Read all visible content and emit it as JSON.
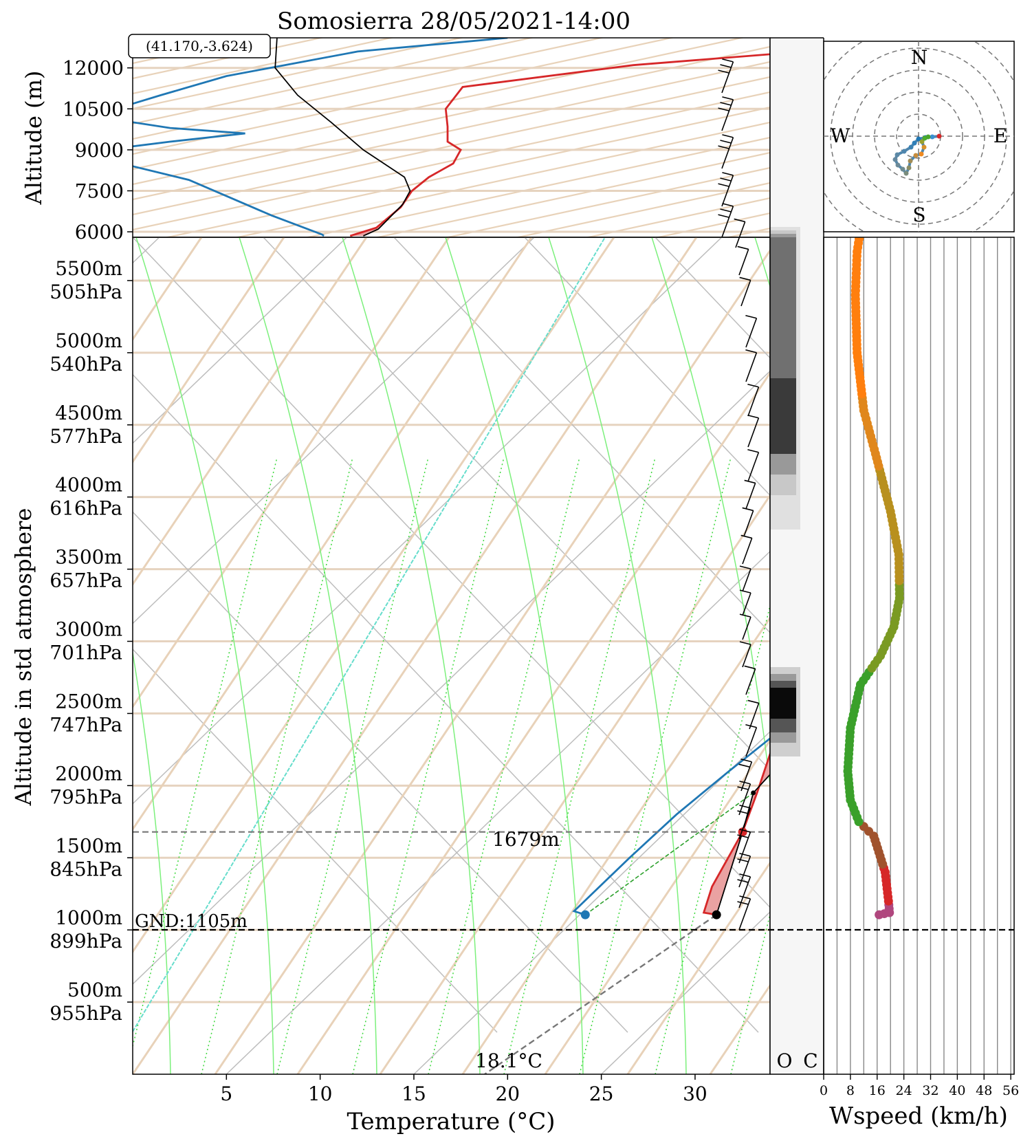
{
  "title": "Somosierra 28/05/2021-14:00",
  "coords_label": "(41.170,-3.624)",
  "upper_panel": {
    "ylabel": "Altitude (m)",
    "ticks": [
      "12000",
      "10500",
      "9000",
      "7500",
      "6000"
    ],
    "tick_values": [
      12000,
      10500,
      9000,
      7500,
      6000
    ]
  },
  "main_panel": {
    "ylabel": "Altitude in std atmosphere",
    "xlabel": "Temperature (°C)",
    "x_ticks": [
      "5",
      "10",
      "15",
      "20",
      "25",
      "30"
    ],
    "x_tick_values": [
      5,
      10,
      15,
      20,
      25,
      30
    ],
    "y_ticks": [
      {
        "alt": "5500m",
        "pres": "505hPa",
        "value": 5500
      },
      {
        "alt": "5000m",
        "pres": "540hPa",
        "value": 5000
      },
      {
        "alt": "4500m",
        "pres": "577hPa",
        "value": 4500
      },
      {
        "alt": "4000m",
        "pres": "616hPa",
        "value": 4000
      },
      {
        "alt": "3500m",
        "pres": "657hPa",
        "value": 3500
      },
      {
        "alt": "3000m",
        "pres": "701hPa",
        "value": 3000
      },
      {
        "alt": "2500m",
        "pres": "747hPa",
        "value": 2500
      },
      {
        "alt": "2000m",
        "pres": "795hPa",
        "value": 2000
      },
      {
        "alt": "1500m",
        "pres": "845hPa",
        "value": 1500
      },
      {
        "alt": "1000m",
        "pres": "899hPa",
        "value": 1000
      },
      {
        "alt": "500m",
        "pres": "955hPa",
        "value": 500
      }
    ],
    "ground_label": "GND:1105m",
    "cloud_base_label": "1679m",
    "surface_temp_label": "18.1°C"
  },
  "cloud_panel": {
    "labels": [
      "O",
      "C"
    ]
  },
  "compass": {
    "N": "N",
    "S": "S",
    "E": "E",
    "W": "W"
  },
  "wind_panel": {
    "xlabel": "Wspeed (km/h)",
    "x_ticks": [
      "0",
      "8",
      "16",
      "24",
      "32",
      "40",
      "48",
      "56"
    ],
    "x_tick_values": [
      0,
      8,
      16,
      24,
      32,
      40,
      48,
      56
    ]
  },
  "colors": {
    "temperature": "#d62728",
    "dewpoint": "#1f77b4",
    "parcel": "#000000",
    "cape_fill": "#eaa2a2",
    "dry_adiabat": "#e8d2b9",
    "moist_adiabat": "#55ee55",
    "mixing_ratio": "#66ddcc"
  },
  "chart_data": [
    {
      "type": "line",
      "name": "sounding",
      "x_unit": "°C",
      "y_unit": "m",
      "xlim": [
        0,
        34
      ],
      "ground_altitude": 1105,
      "lcl_altitude": 1679,
      "series": [
        {
          "name": "temperature",
          "points": [
            [
              22.3,
              1105
            ],
            [
              21.5,
              1120
            ],
            [
              20.5,
              1300
            ],
            [
              19.1,
              1679
            ],
            [
              17.7,
              1950
            ],
            [
              15.8,
              2300
            ],
            [
              15.1,
              2550
            ],
            [
              15.0,
              2780
            ],
            [
              15.1,
              2950
            ],
            [
              15.1,
              3120
            ],
            [
              14.5,
              3400
            ],
            [
              13.9,
              3700
            ],
            [
              13.4,
              4000
            ],
            [
              13.1,
              4350
            ],
            [
              13.0,
              4550
            ],
            [
              12.9,
              4850
            ],
            [
              12.6,
              5200
            ],
            [
              12.1,
              5650
            ],
            [
              11.6,
              5850
            ],
            [
              13.0,
              6150
            ],
            [
              14.3,
              6900
            ],
            [
              14.9,
              7500
            ],
            [
              15.8,
              8000
            ],
            [
              17.1,
              8500
            ],
            [
              17.5,
              9000
            ],
            [
              16.8,
              9300
            ],
            [
              16.8,
              9850
            ],
            [
              16.7,
              10500
            ],
            [
              17.6,
              11300
            ],
            [
              26.7,
              12100
            ],
            [
              45.0,
              13100
            ]
          ]
        },
        {
          "name": "dewpoint",
          "points": [
            [
              15.3,
              1105
            ],
            [
              14.5,
              1130
            ],
            [
              14.5,
              1200
            ],
            [
              14.5,
              1500
            ],
            [
              14.6,
              1800
            ],
            [
              15.0,
              2100
            ],
            [
              15.5,
              2400
            ],
            [
              15.5,
              2700
            ],
            [
              14.5,
              2900
            ],
            [
              12.7,
              3050
            ],
            [
              12.0,
              3200
            ],
            [
              11.8,
              3400
            ],
            [
              11.6,
              3700
            ],
            [
              11.8,
              4000
            ],
            [
              12.0,
              4400
            ],
            [
              11.8,
              4650
            ],
            [
              11.4,
              5000
            ],
            [
              10.8,
              5400
            ],
            [
              10.5,
              5650
            ],
            [
              10.2,
              5850
            ],
            [
              10.1,
              5900
            ],
            [
              7.4,
              6600
            ],
            [
              3.0,
              7900
            ],
            [
              0.0,
              8400
            ],
            [
              -3.2,
              8800
            ],
            [
              -1.5,
              9000
            ],
            [
              2.0,
              9300
            ],
            [
              6.0,
              9600
            ],
            [
              2.0,
              9800
            ],
            [
              -1.8,
              10200
            ],
            [
              -0.9,
              10500
            ],
            [
              1.5,
              11000
            ],
            [
              5.0,
              11700
            ],
            [
              12.0,
              12600
            ],
            [
              20.0,
              13100
            ]
          ]
        },
        {
          "name": "parcel",
          "points": [
            [
              22.3,
              1105
            ],
            [
              19.1,
              1679
            ],
            [
              17.5,
              1950
            ],
            [
              17.4,
              2050
            ],
            [
              16.6,
              3000
            ],
            [
              15.4,
              4000
            ],
            [
              13.9,
              5000
            ],
            [
              13.1,
              5500
            ],
            [
              12.3,
              5850
            ],
            [
              13.1,
              6100
            ],
            [
              14.4,
              7000
            ],
            [
              14.8,
              7500
            ],
            [
              14.5,
              8000
            ],
            [
              12.3,
              9000
            ],
            [
              10.6,
              10000
            ],
            [
              8.8,
              11000
            ],
            [
              7.6,
              12000
            ],
            [
              7.7,
              13100
            ]
          ]
        }
      ]
    },
    {
      "type": "scatter",
      "name": "wind speed profile",
      "x_unit": "km/h",
      "y_unit": "m",
      "xlim": [
        0,
        56
      ],
      "points": [
        [
          16.6,
          1105
        ],
        [
          19.7,
          1120
        ],
        [
          19.4,
          1200
        ],
        [
          18.4,
          1400
        ],
        [
          15.0,
          1650
        ],
        [
          10.5,
          1750
        ],
        [
          8.0,
          1900
        ],
        [
          7.2,
          2100
        ],
        [
          8.0,
          2400
        ],
        [
          11.0,
          2700
        ],
        [
          17.0,
          2900
        ],
        [
          21.0,
          3100
        ],
        [
          22.7,
          3300
        ],
        [
          22.5,
          3600
        ],
        [
          20.0,
          3900
        ],
        [
          15.5,
          4300
        ],
        [
          12.0,
          4600
        ],
        [
          10.0,
          5000
        ],
        [
          9.5,
          5400
        ],
        [
          10.0,
          5700
        ],
        [
          11.0,
          5850
        ]
      ]
    }
  ]
}
